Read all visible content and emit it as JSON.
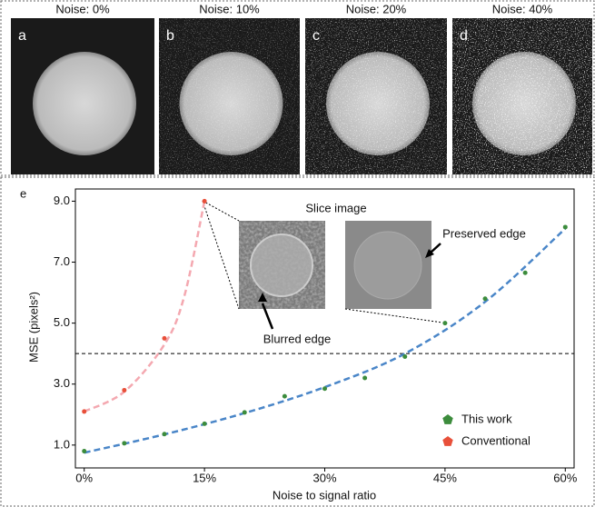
{
  "panels": [
    {
      "title": "Noise: 0%",
      "letter": "a"
    },
    {
      "title": "Noise: 10%",
      "letter": "b"
    },
    {
      "title": "Noise: 20%",
      "letter": "c"
    },
    {
      "title": "Noise: 40%",
      "letter": "d"
    }
  ],
  "chart_data": {
    "type": "scatter",
    "panel_letter": "e",
    "x_label": "Noise to signal ratio",
    "y_label": "MSE (pixels²)",
    "xlim": [
      -1.1,
      61.1
    ],
    "ylim": [
      0.25,
      9.4
    ],
    "xticks": [
      {
        "value": 0,
        "label": "0%"
      },
      {
        "value": 15,
        "label": "15%"
      },
      {
        "value": 30,
        "label": "30%"
      },
      {
        "value": 45,
        "label": "45%"
      },
      {
        "value": 60,
        "label": "60%"
      }
    ],
    "yticks": [
      {
        "value": 1,
        "label": "1.0"
      },
      {
        "value": 3,
        "label": "3.0"
      },
      {
        "value": 5,
        "label": "5.0"
      },
      {
        "value": 7,
        "label": "7.0"
      },
      {
        "value": 9,
        "label": "9.0"
      }
    ],
    "hline": 4,
    "series": [
      {
        "name": "This work",
        "color": "#3c8c3c",
        "x": [
          0,
          5,
          10,
          15,
          20,
          25,
          30,
          35,
          40,
          45,
          50,
          55,
          60
        ],
        "values": [
          0.8,
          1.06,
          1.36,
          1.7,
          2.07,
          2.6,
          2.85,
          3.2,
          3.9,
          5.0,
          5.8,
          6.65,
          8.15
        ]
      },
      {
        "name": "Conventional",
        "color": "#e8503a",
        "x": [
          0,
          5,
          10,
          15
        ],
        "values": [
          2.1,
          2.8,
          4.5,
          9.0
        ]
      },
      {
        "type": "line",
        "dashed": true,
        "color": "#4a86c8",
        "x": [
          0,
          10,
          20,
          30,
          40,
          50,
          60
        ],
        "values": [
          0.75,
          1.35,
          2.05,
          2.9,
          4.0,
          5.7,
          8.1
        ]
      },
      {
        "type": "line",
        "dashed": true,
        "color": "#f4a8b0",
        "x": [
          0,
          5,
          10,
          12.5,
          15
        ],
        "values": [
          2.1,
          2.75,
          4.3,
          5.9,
          9.0
        ]
      }
    ],
    "inset": {
      "title": "Slice image",
      "labels": [
        "Blurred edge",
        "Preserved edge"
      ]
    }
  }
}
